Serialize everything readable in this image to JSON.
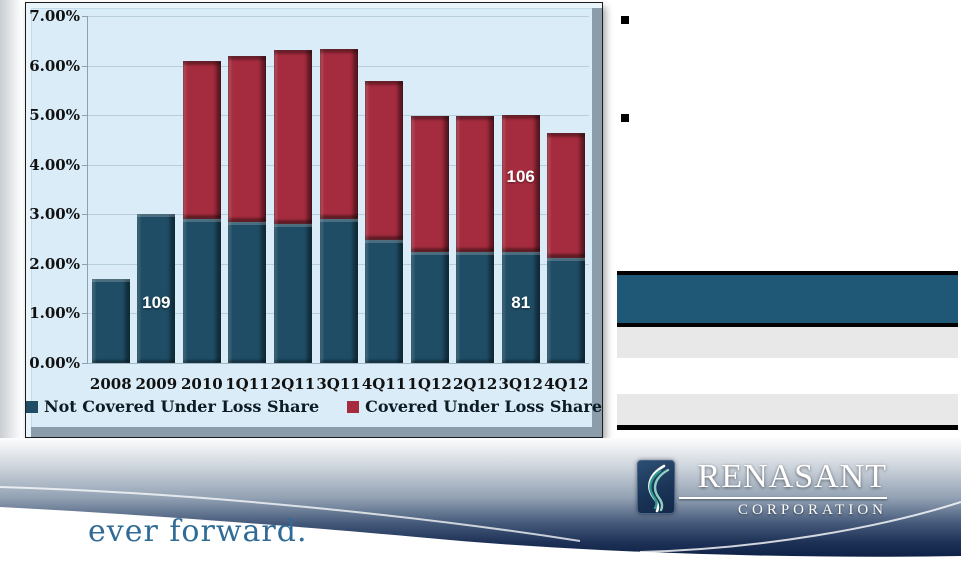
{
  "chart_data": {
    "type": "bar",
    "stacked": true,
    "categories": [
      "2008",
      "2009",
      "2010",
      "1Q11",
      "2Q11",
      "3Q11",
      "4Q11",
      "1Q12",
      "2Q12",
      "3Q12",
      "4Q12"
    ],
    "series": [
      {
        "name": "Not Covered Under Loss Share",
        "color": "#1E4D65",
        "values": [
          1.7,
          3.0,
          2.9,
          2.85,
          2.8,
          2.9,
          2.48,
          2.23,
          2.23,
          2.24,
          2.12
        ]
      },
      {
        "name": "Covered Under Loss Share",
        "color": "#A52C3E",
        "values": [
          0,
          0,
          3.2,
          3.35,
          3.52,
          3.43,
          3.2,
          2.76,
          2.75,
          2.76,
          2.52
        ]
      }
    ],
    "bar_labels": [
      {
        "category": "2009",
        "series": 0,
        "text": "109",
        "at_value": 1.2
      },
      {
        "category": "3Q12",
        "series": 1,
        "text": "106",
        "at_value": 3.73
      },
      {
        "category": "3Q12",
        "series": 0,
        "text": "81",
        "at_value": 1.2
      }
    ],
    "title": "",
    "xlabel": "",
    "ylabel": "",
    "ylim": [
      0,
      7
    ],
    "yticks": [
      "0.00%",
      "1.00%",
      "2.00%",
      "3.00%",
      "4.00%",
      "5.00%",
      "6.00%",
      "7.00%"
    ],
    "grid": true,
    "legend_position": "bottom",
    "plot_bg": "#D9ECF8"
  },
  "bullets": [
    {
      "text": ""
    },
    {
      "text": ""
    }
  ],
  "side_table": {
    "header_color": "#1F5877",
    "stripe_color": "#E8E8E8",
    "rows": [
      {
        "type": "header",
        "text": ""
      },
      {
        "type": "stripe",
        "text": ""
      },
      {
        "type": "plain",
        "text": ""
      },
      {
        "type": "stripe",
        "text": ""
      }
    ]
  },
  "footer": {
    "tagline": "ever forward.",
    "tagline_color": "#2F6B96",
    "band_dark_color": "#0F2147",
    "logo": {
      "wordmark": "RENASANT",
      "subtext": "CORPORATION"
    }
  }
}
